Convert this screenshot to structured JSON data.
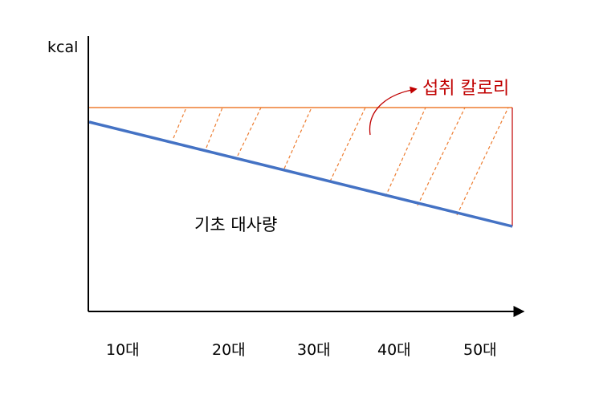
{
  "diagram": {
    "y_axis_label": "kcal",
    "x_categories": [
      "10대",
      "20대",
      "30대",
      "40대",
      "50대"
    ],
    "intake_label": "섭취 칼로리",
    "bmr_label": "기초 대사량",
    "colors": {
      "axis": "#000000",
      "intake_line": "#ED7D31",
      "bmr_line": "#4472C4",
      "hatch": "#ED7D31",
      "intake_label": "#C00000",
      "right_edge": "#C00000",
      "curved_arrow": "#C00000"
    }
  }
}
